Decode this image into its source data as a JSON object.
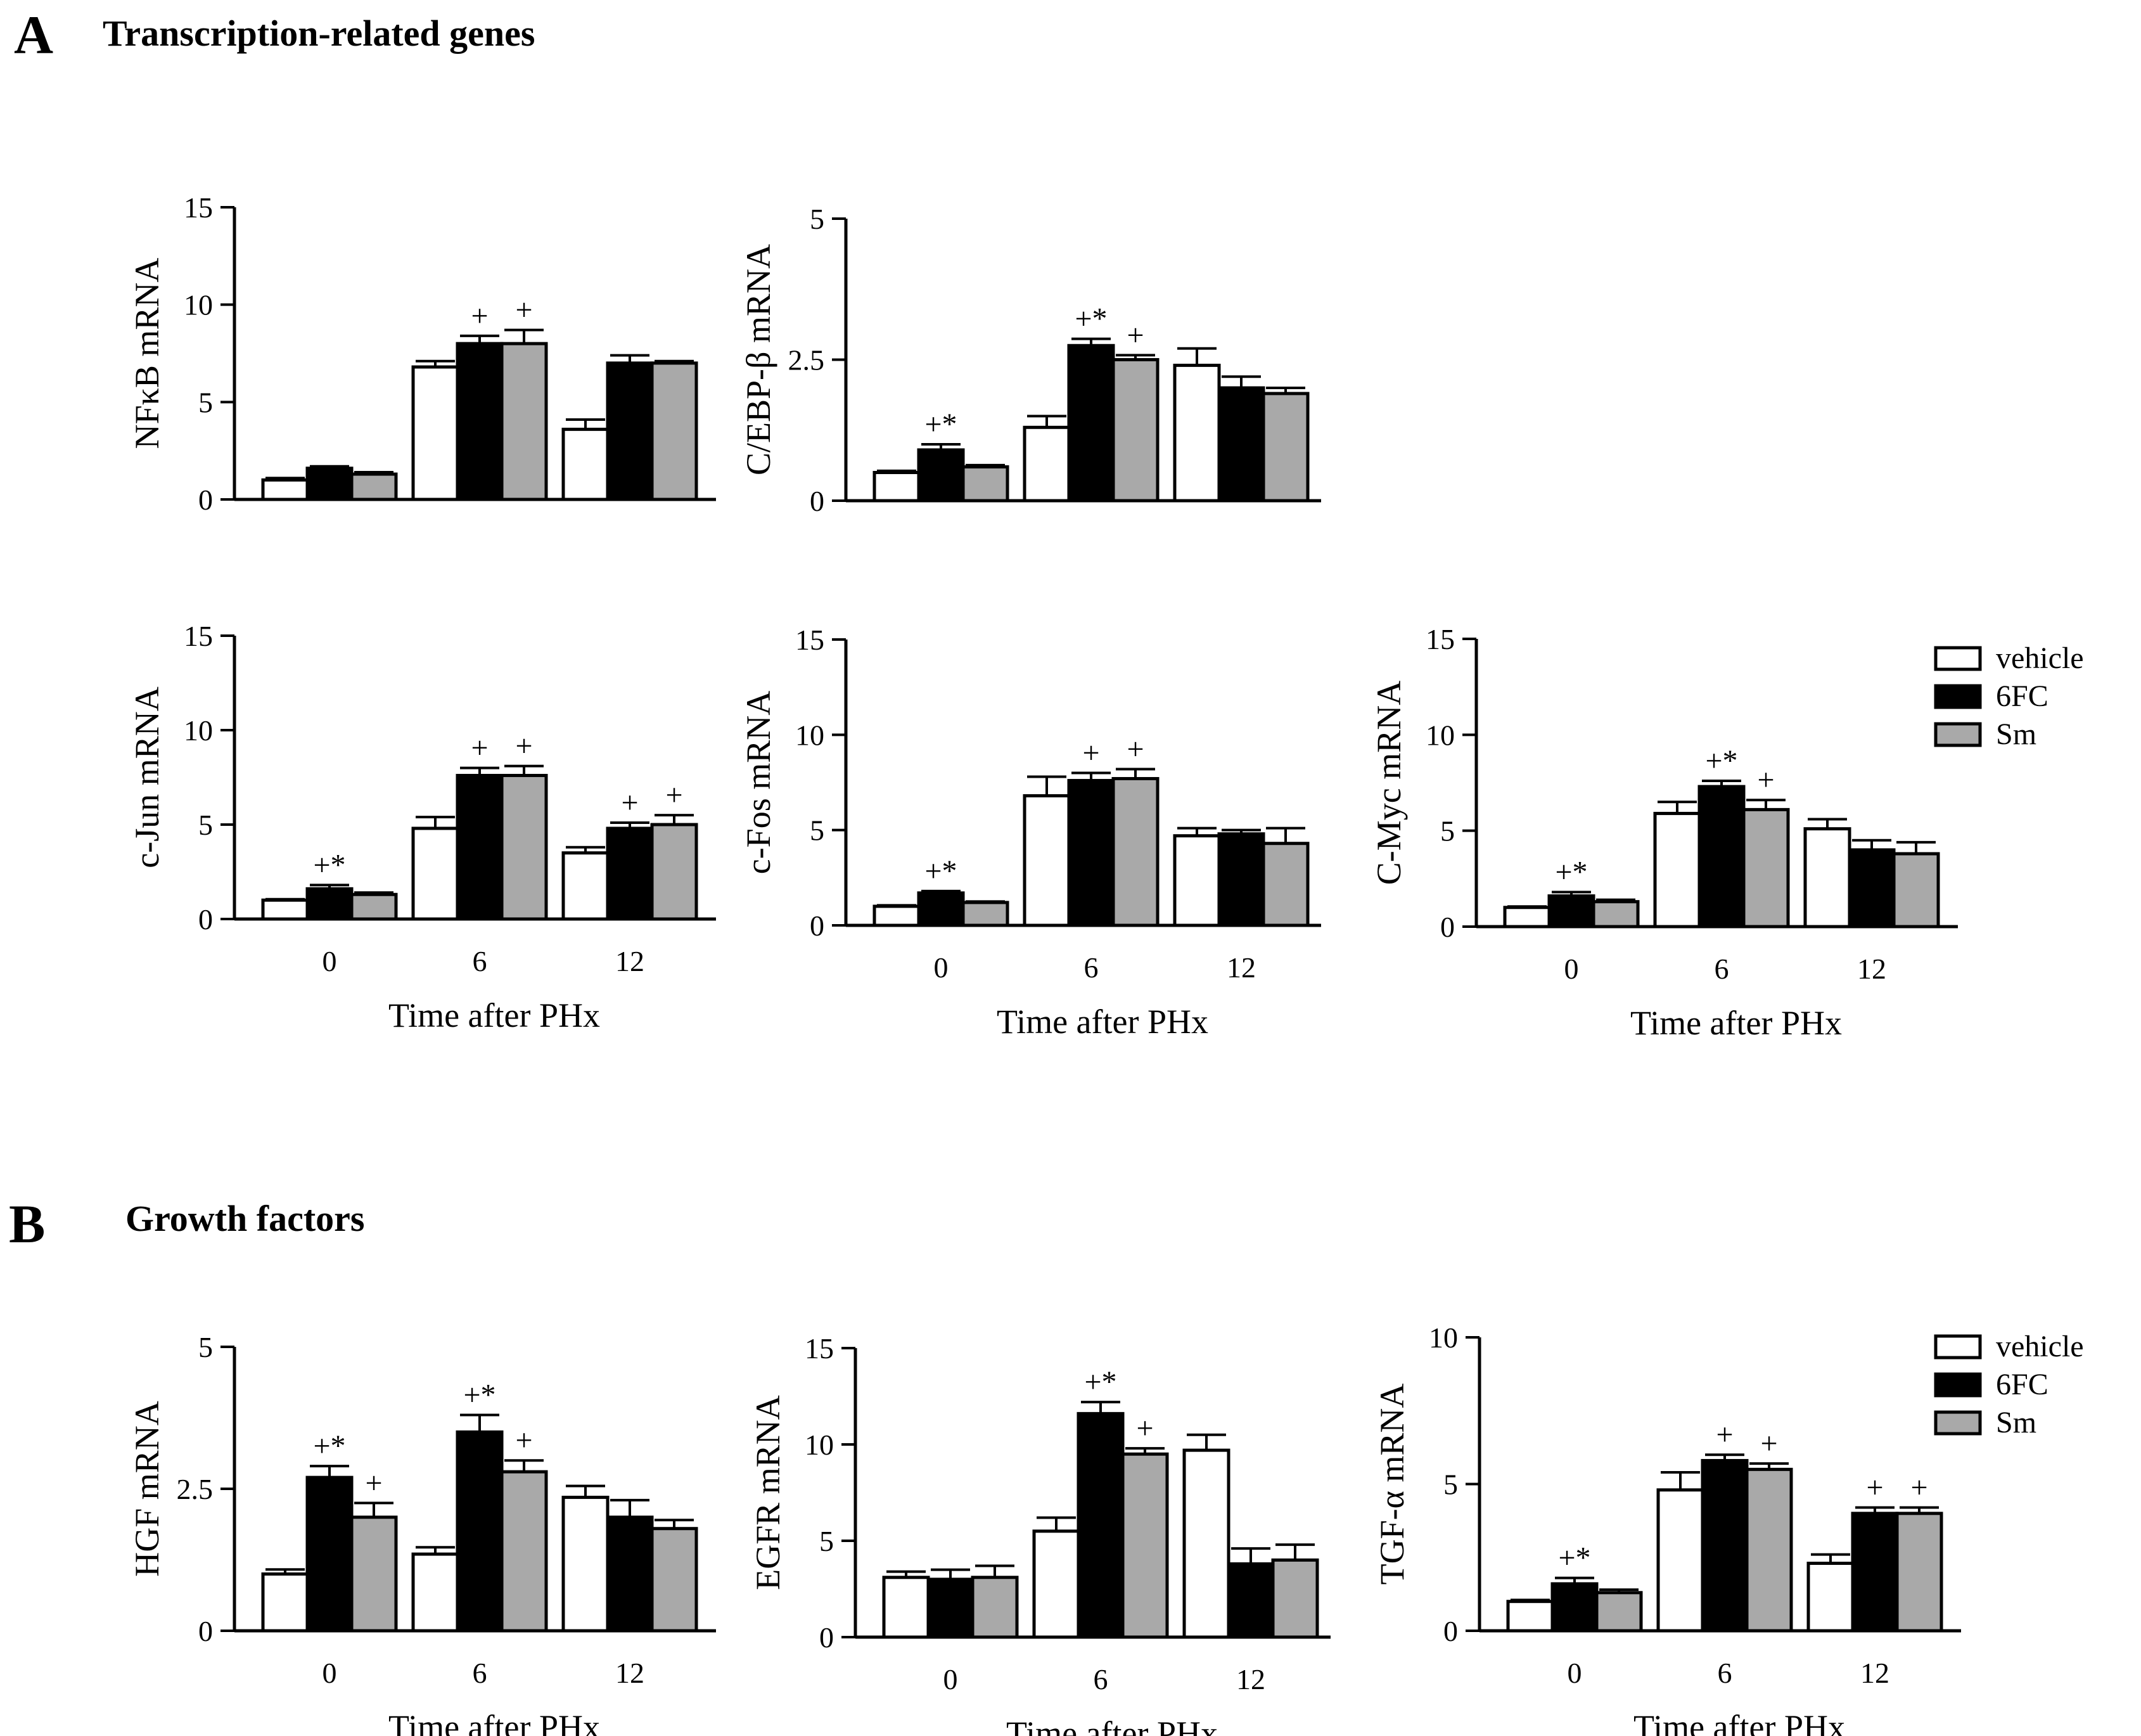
{
  "colors": {
    "vehicle": "#ffffff",
    "6FC": "#000000",
    "Sm": "#a9a9a9",
    "ink": "#000000"
  },
  "sections": [
    {
      "letter": "A",
      "title": "Transcription-related genes"
    },
    {
      "letter": "B",
      "title": "Growth factors"
    }
  ],
  "legend": {
    "labels": [
      "vehicle",
      "6FC",
      "Sm"
    ]
  },
  "chart_data": [
    {
      "type": "bar",
      "id": "nfkb",
      "ylabel": "NFκB mRNA",
      "xlabel": "",
      "categories": [
        "0",
        "6",
        "12"
      ],
      "ylim": [
        0,
        15
      ],
      "yticks": [
        "0",
        "5",
        "10",
        "15"
      ],
      "series": [
        {
          "name": "vehicle",
          "values": [
            1.0,
            6.8,
            3.6
          ],
          "errors": [
            0.1,
            0.3,
            0.5
          ],
          "marks": [
            "",
            "",
            ""
          ]
        },
        {
          "name": "6FC",
          "values": [
            1.6,
            8.0,
            7.0
          ],
          "errors": [
            0.1,
            0.4,
            0.4
          ],
          "marks": [
            "",
            "+",
            ""
          ]
        },
        {
          "name": "Sm",
          "values": [
            1.3,
            8.0,
            7.0
          ],
          "errors": [
            0.1,
            0.7,
            0.1
          ],
          "marks": [
            "",
            "+",
            ""
          ]
        }
      ]
    },
    {
      "type": "bar",
      "id": "cebp",
      "ylabel": "C/EBP-β mRNA",
      "xlabel": "",
      "categories": [
        "0",
        "6",
        "12"
      ],
      "ylim": [
        0,
        5
      ],
      "yticks": [
        "0",
        "2.5",
        "5"
      ],
      "series": [
        {
          "name": "vehicle",
          "values": [
            0.5,
            1.3,
            2.4
          ],
          "errors": [
            0.03,
            0.2,
            0.3
          ],
          "marks": [
            "",
            "",
            ""
          ]
        },
        {
          "name": "6FC",
          "values": [
            0.9,
            2.75,
            2.0
          ],
          "errors": [
            0.1,
            0.12,
            0.2
          ],
          "marks": [
            "+*",
            "+*",
            ""
          ]
        },
        {
          "name": "Sm",
          "values": [
            0.6,
            2.5,
            1.9
          ],
          "errors": [
            0.03,
            0.08,
            0.1
          ],
          "marks": [
            "",
            "+",
            ""
          ]
        }
      ]
    },
    {
      "type": "bar",
      "id": "cjun",
      "ylabel": "c-Jun mRNA",
      "xlabel": "Time after PHx",
      "categories": [
        "0",
        "6",
        "12"
      ],
      "ylim": [
        0,
        15
      ],
      "yticks": [
        "0",
        "5",
        "10",
        "15"
      ],
      "series": [
        {
          "name": "vehicle",
          "values": [
            1.0,
            4.8,
            3.5
          ],
          "errors": [
            0.05,
            0.6,
            0.3
          ],
          "marks": [
            "",
            "",
            ""
          ]
        },
        {
          "name": "6FC",
          "values": [
            1.6,
            7.6,
            4.8
          ],
          "errors": [
            0.2,
            0.4,
            0.3
          ],
          "marks": [
            "+*",
            "+",
            "+"
          ]
        },
        {
          "name": "Sm",
          "values": [
            1.3,
            7.6,
            5.0
          ],
          "errors": [
            0.1,
            0.5,
            0.5
          ],
          "marks": [
            "",
            "+",
            "+"
          ]
        }
      ]
    },
    {
      "type": "bar",
      "id": "cfos",
      "ylabel": "c-Fos mRNA",
      "xlabel": "Time after PHx",
      "categories": [
        "0",
        "6",
        "12"
      ],
      "ylim": [
        0,
        15
      ],
      "yticks": [
        "0",
        "5",
        "10",
        "15"
      ],
      "series": [
        {
          "name": "vehicle",
          "values": [
            1.0,
            6.8,
            4.7
          ],
          "errors": [
            0.05,
            1.0,
            0.4
          ],
          "marks": [
            "",
            "",
            ""
          ]
        },
        {
          "name": "6FC",
          "values": [
            1.7,
            7.6,
            4.8
          ],
          "errors": [
            0.1,
            0.4,
            0.2
          ],
          "marks": [
            "+*",
            "+",
            ""
          ]
        },
        {
          "name": "Sm",
          "values": [
            1.2,
            7.7,
            4.3
          ],
          "errors": [
            0.05,
            0.5,
            0.8
          ],
          "marks": [
            "",
            "+",
            ""
          ]
        }
      ]
    },
    {
      "type": "bar",
      "id": "cmyc",
      "ylabel": "C-Myc mRNA",
      "xlabel": "Time after PHx",
      "categories": [
        "0",
        "6",
        "12"
      ],
      "ylim": [
        0,
        15
      ],
      "yticks": [
        "0",
        "5",
        "10",
        "15"
      ],
      "series": [
        {
          "name": "vehicle",
          "values": [
            1.0,
            5.9,
            5.1
          ],
          "errors": [
            0.05,
            0.6,
            0.5
          ],
          "marks": [
            "",
            "",
            ""
          ]
        },
        {
          "name": "6FC",
          "values": [
            1.6,
            7.3,
            4.0
          ],
          "errors": [
            0.2,
            0.3,
            0.5
          ],
          "marks": [
            "+*",
            "+*",
            ""
          ]
        },
        {
          "name": "Sm",
          "values": [
            1.3,
            6.1,
            3.8
          ],
          "errors": [
            0.1,
            0.5,
            0.6
          ],
          "marks": [
            "",
            "+",
            ""
          ]
        }
      ]
    },
    {
      "type": "bar",
      "id": "hgf",
      "ylabel": "HGF mRNA",
      "xlabel": "Time after PHx",
      "categories": [
        "0",
        "6",
        "12"
      ],
      "ylim": [
        0,
        5
      ],
      "yticks": [
        "0",
        "2.5",
        "5"
      ],
      "series": [
        {
          "name": "vehicle",
          "values": [
            1.0,
            1.35,
            2.35
          ],
          "errors": [
            0.08,
            0.12,
            0.2
          ],
          "marks": [
            "",
            "",
            ""
          ]
        },
        {
          "name": "6FC",
          "values": [
            2.7,
            3.5,
            2.0
          ],
          "errors": [
            0.2,
            0.3,
            0.3
          ],
          "marks": [
            "+*",
            "+*",
            ""
          ]
        },
        {
          "name": "Sm",
          "values": [
            2.0,
            2.8,
            1.8
          ],
          "errors": [
            0.25,
            0.2,
            0.15
          ],
          "marks": [
            "+",
            "+",
            ""
          ]
        }
      ]
    },
    {
      "type": "bar",
      "id": "egfr",
      "ylabel": "EGFR mRNA",
      "xlabel": "Time after PHx",
      "categories": [
        "0",
        "6",
        "12"
      ],
      "ylim": [
        0,
        15
      ],
      "yticks": [
        "0",
        "5",
        "10",
        "15"
      ],
      "series": [
        {
          "name": "vehicle",
          "values": [
            3.1,
            5.5,
            9.7
          ],
          "errors": [
            0.3,
            0.7,
            0.8
          ],
          "marks": [
            "",
            "",
            ""
          ]
        },
        {
          "name": "6FC",
          "values": [
            3.0,
            11.6,
            3.8
          ],
          "errors": [
            0.5,
            0.6,
            0.8
          ],
          "marks": [
            "",
            "+*",
            ""
          ]
        },
        {
          "name": "Sm",
          "values": [
            3.1,
            9.5,
            4.0
          ],
          "errors": [
            0.6,
            0.3,
            0.8
          ],
          "marks": [
            "",
            "+",
            ""
          ]
        }
      ]
    },
    {
      "type": "bar",
      "id": "tgfa",
      "ylabel": "TGF-α mRNA",
      "xlabel": "Time after PHx",
      "categories": [
        "0",
        "6",
        "12"
      ],
      "ylim": [
        0,
        10
      ],
      "yticks": [
        "0",
        "5",
        "10"
      ],
      "series": [
        {
          "name": "vehicle",
          "values": [
            1.0,
            4.8,
            2.3
          ],
          "errors": [
            0.05,
            0.6,
            0.3
          ],
          "marks": [
            "",
            "",
            ""
          ]
        },
        {
          "name": "6FC",
          "values": [
            1.6,
            5.8,
            4.0
          ],
          "errors": [
            0.2,
            0.2,
            0.2
          ],
          "marks": [
            "+*",
            "+",
            "+"
          ]
        },
        {
          "name": "Sm",
          "values": [
            1.3,
            5.5,
            4.0
          ],
          "errors": [
            0.1,
            0.2,
            0.2
          ],
          "marks": [
            "",
            "+",
            "+"
          ]
        }
      ]
    }
  ]
}
